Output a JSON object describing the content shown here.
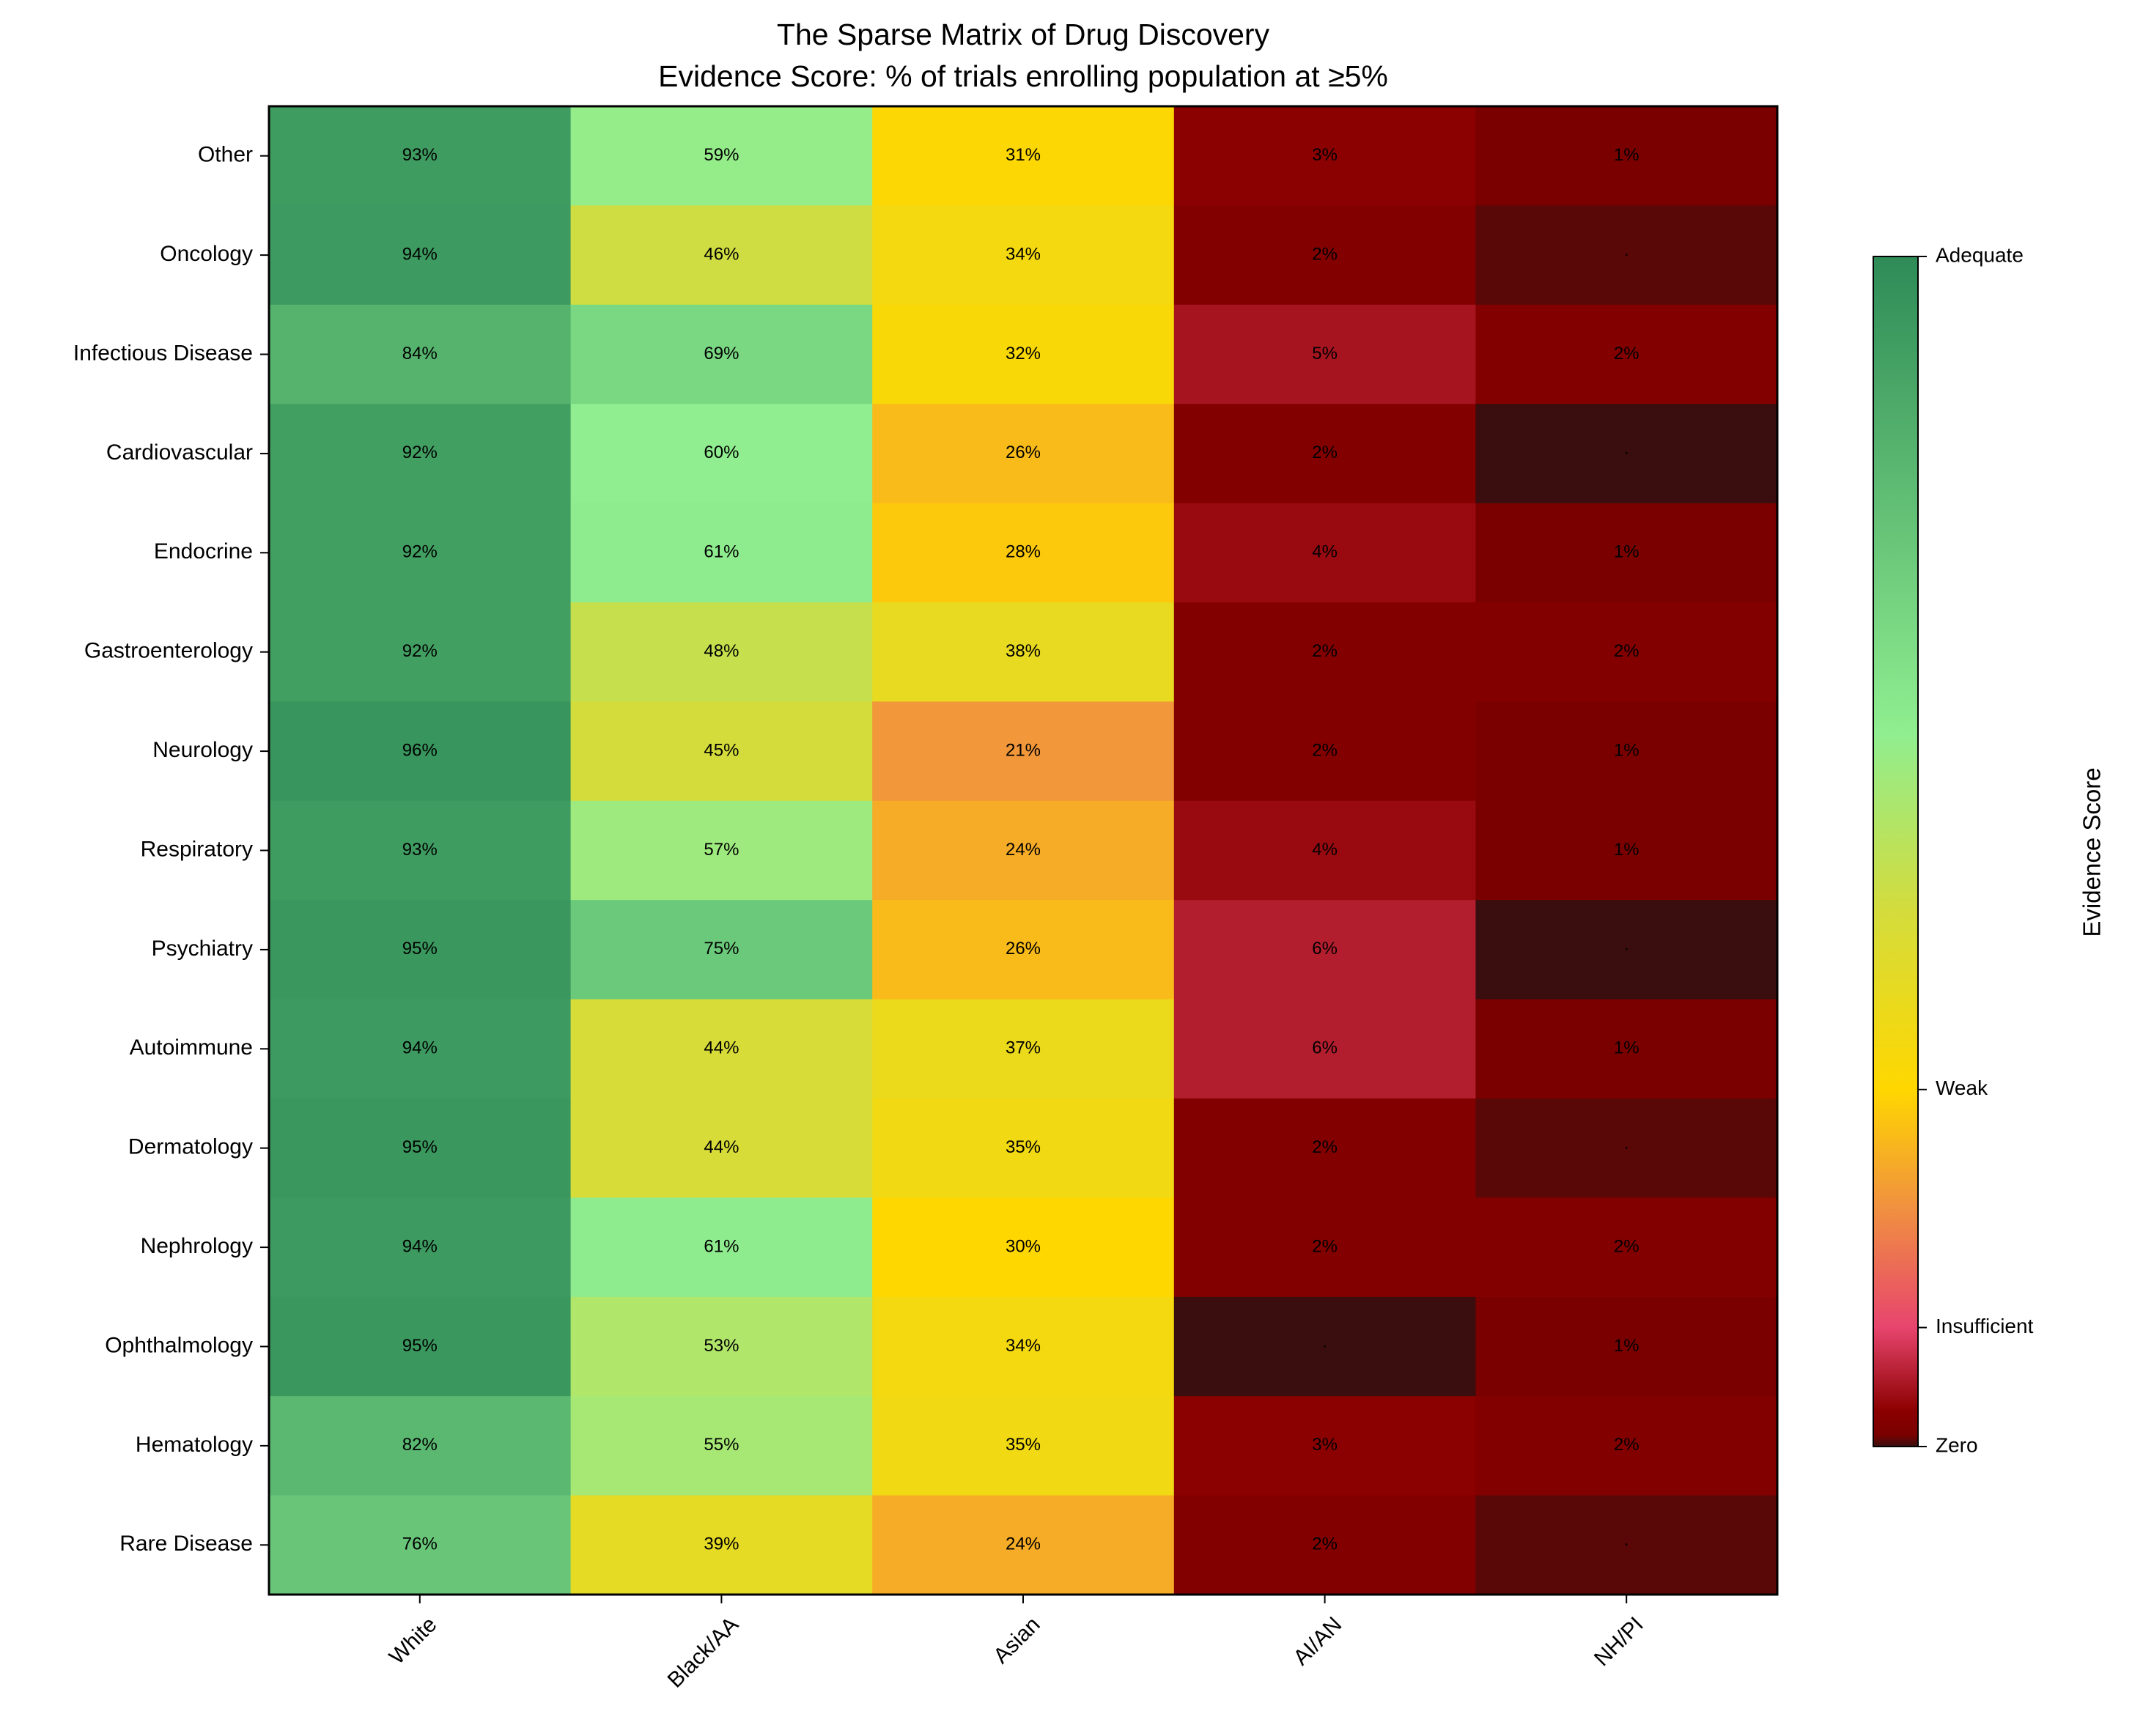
{
  "chart_data": {
    "type": "heatmap",
    "title": [
      "The Sparse Matrix of Drug Discovery",
      "Evidence Score: % of trials enrolling population at ≥5%"
    ],
    "x_categories": [
      "White",
      "Black/AA",
      "Asian",
      "AI/AN",
      "NH/PI"
    ],
    "y_categories": [
      "Other",
      "Oncology",
      "Infectious Disease",
      "Cardiovascular",
      "Endocrine",
      "Gastroenterology",
      "Neurology",
      "Respiratory",
      "Psychiatry",
      "Autoimmune",
      "Dermatology",
      "Nephrology",
      "Ophthalmology",
      "Hematology",
      "Rare Disease"
    ],
    "values": [
      [
        93,
        59,
        31,
        3,
        1
      ],
      [
        94,
        46,
        34,
        2,
        0.5
      ],
      [
        84,
        69,
        32,
        5,
        2
      ],
      [
        92,
        60,
        26,
        2,
        0
      ],
      [
        92,
        61,
        28,
        4,
        1
      ],
      [
        92,
        48,
        38,
        2,
        2
      ],
      [
        96,
        45,
        21,
        2,
        1
      ],
      [
        93,
        57,
        24,
        4,
        1
      ],
      [
        95,
        75,
        26,
        6,
        0
      ],
      [
        94,
        44,
        37,
        6,
        1
      ],
      [
        95,
        44,
        35,
        2,
        0.5
      ],
      [
        94,
        61,
        30,
        2,
        2
      ],
      [
        95,
        53,
        34,
        0,
        1
      ],
      [
        82,
        55,
        35,
        3,
        2
      ],
      [
        76,
        39,
        24,
        2,
        0.5
      ]
    ],
    "value_labels": [
      [
        "93%",
        "59%",
        "31%",
        "3%",
        "1%"
      ],
      [
        "94%",
        "46%",
        "34%",
        "2%",
        "·"
      ],
      [
        "84%",
        "69%",
        "32%",
        "5%",
        "2%"
      ],
      [
        "92%",
        "60%",
        "26%",
        "2%",
        "·"
      ],
      [
        "92%",
        "61%",
        "28%",
        "4%",
        "1%"
      ],
      [
        "92%",
        "48%",
        "38%",
        "2%",
        "2%"
      ],
      [
        "96%",
        "45%",
        "21%",
        "2%",
        "1%"
      ],
      [
        "93%",
        "57%",
        "24%",
        "4%",
        "1%"
      ],
      [
        "95%",
        "75%",
        "26%",
        "6%",
        "·"
      ],
      [
        "94%",
        "44%",
        "37%",
        "6%",
        "1%"
      ],
      [
        "95%",
        "44%",
        "35%",
        "2%",
        "·"
      ],
      [
        "94%",
        "61%",
        "30%",
        "2%",
        "2%"
      ],
      [
        "95%",
        "53%",
        "34%",
        "·",
        "1%"
      ],
      [
        "82%",
        "55%",
        "35%",
        "3%",
        "2%"
      ],
      [
        "76%",
        "39%",
        "24%",
        "2%",
        "·"
      ]
    ],
    "colorbar_label": "Evidence Score",
    "clim": [
      0,
      100
    ],
    "colorbar_ticks": [
      {
        "value": 0,
        "label": "Zero"
      },
      {
        "value": 10,
        "label": "Insufficient"
      },
      {
        "value": 30,
        "label": "Weak"
      },
      {
        "value": 100,
        "label": "Adequate"
      }
    ],
    "colorscale": [
      [
        0,
        "#3a0e0e"
      ],
      [
        1,
        "#7a0000"
      ],
      [
        3,
        "#8b0000"
      ],
      [
        10,
        "#e8456e"
      ],
      [
        20,
        "#f09040"
      ],
      [
        30,
        "#ffd700"
      ],
      [
        45,
        "#d4dc3c"
      ],
      [
        60,
        "#90ee90"
      ],
      [
        100,
        "#2e8b57"
      ]
    ]
  }
}
